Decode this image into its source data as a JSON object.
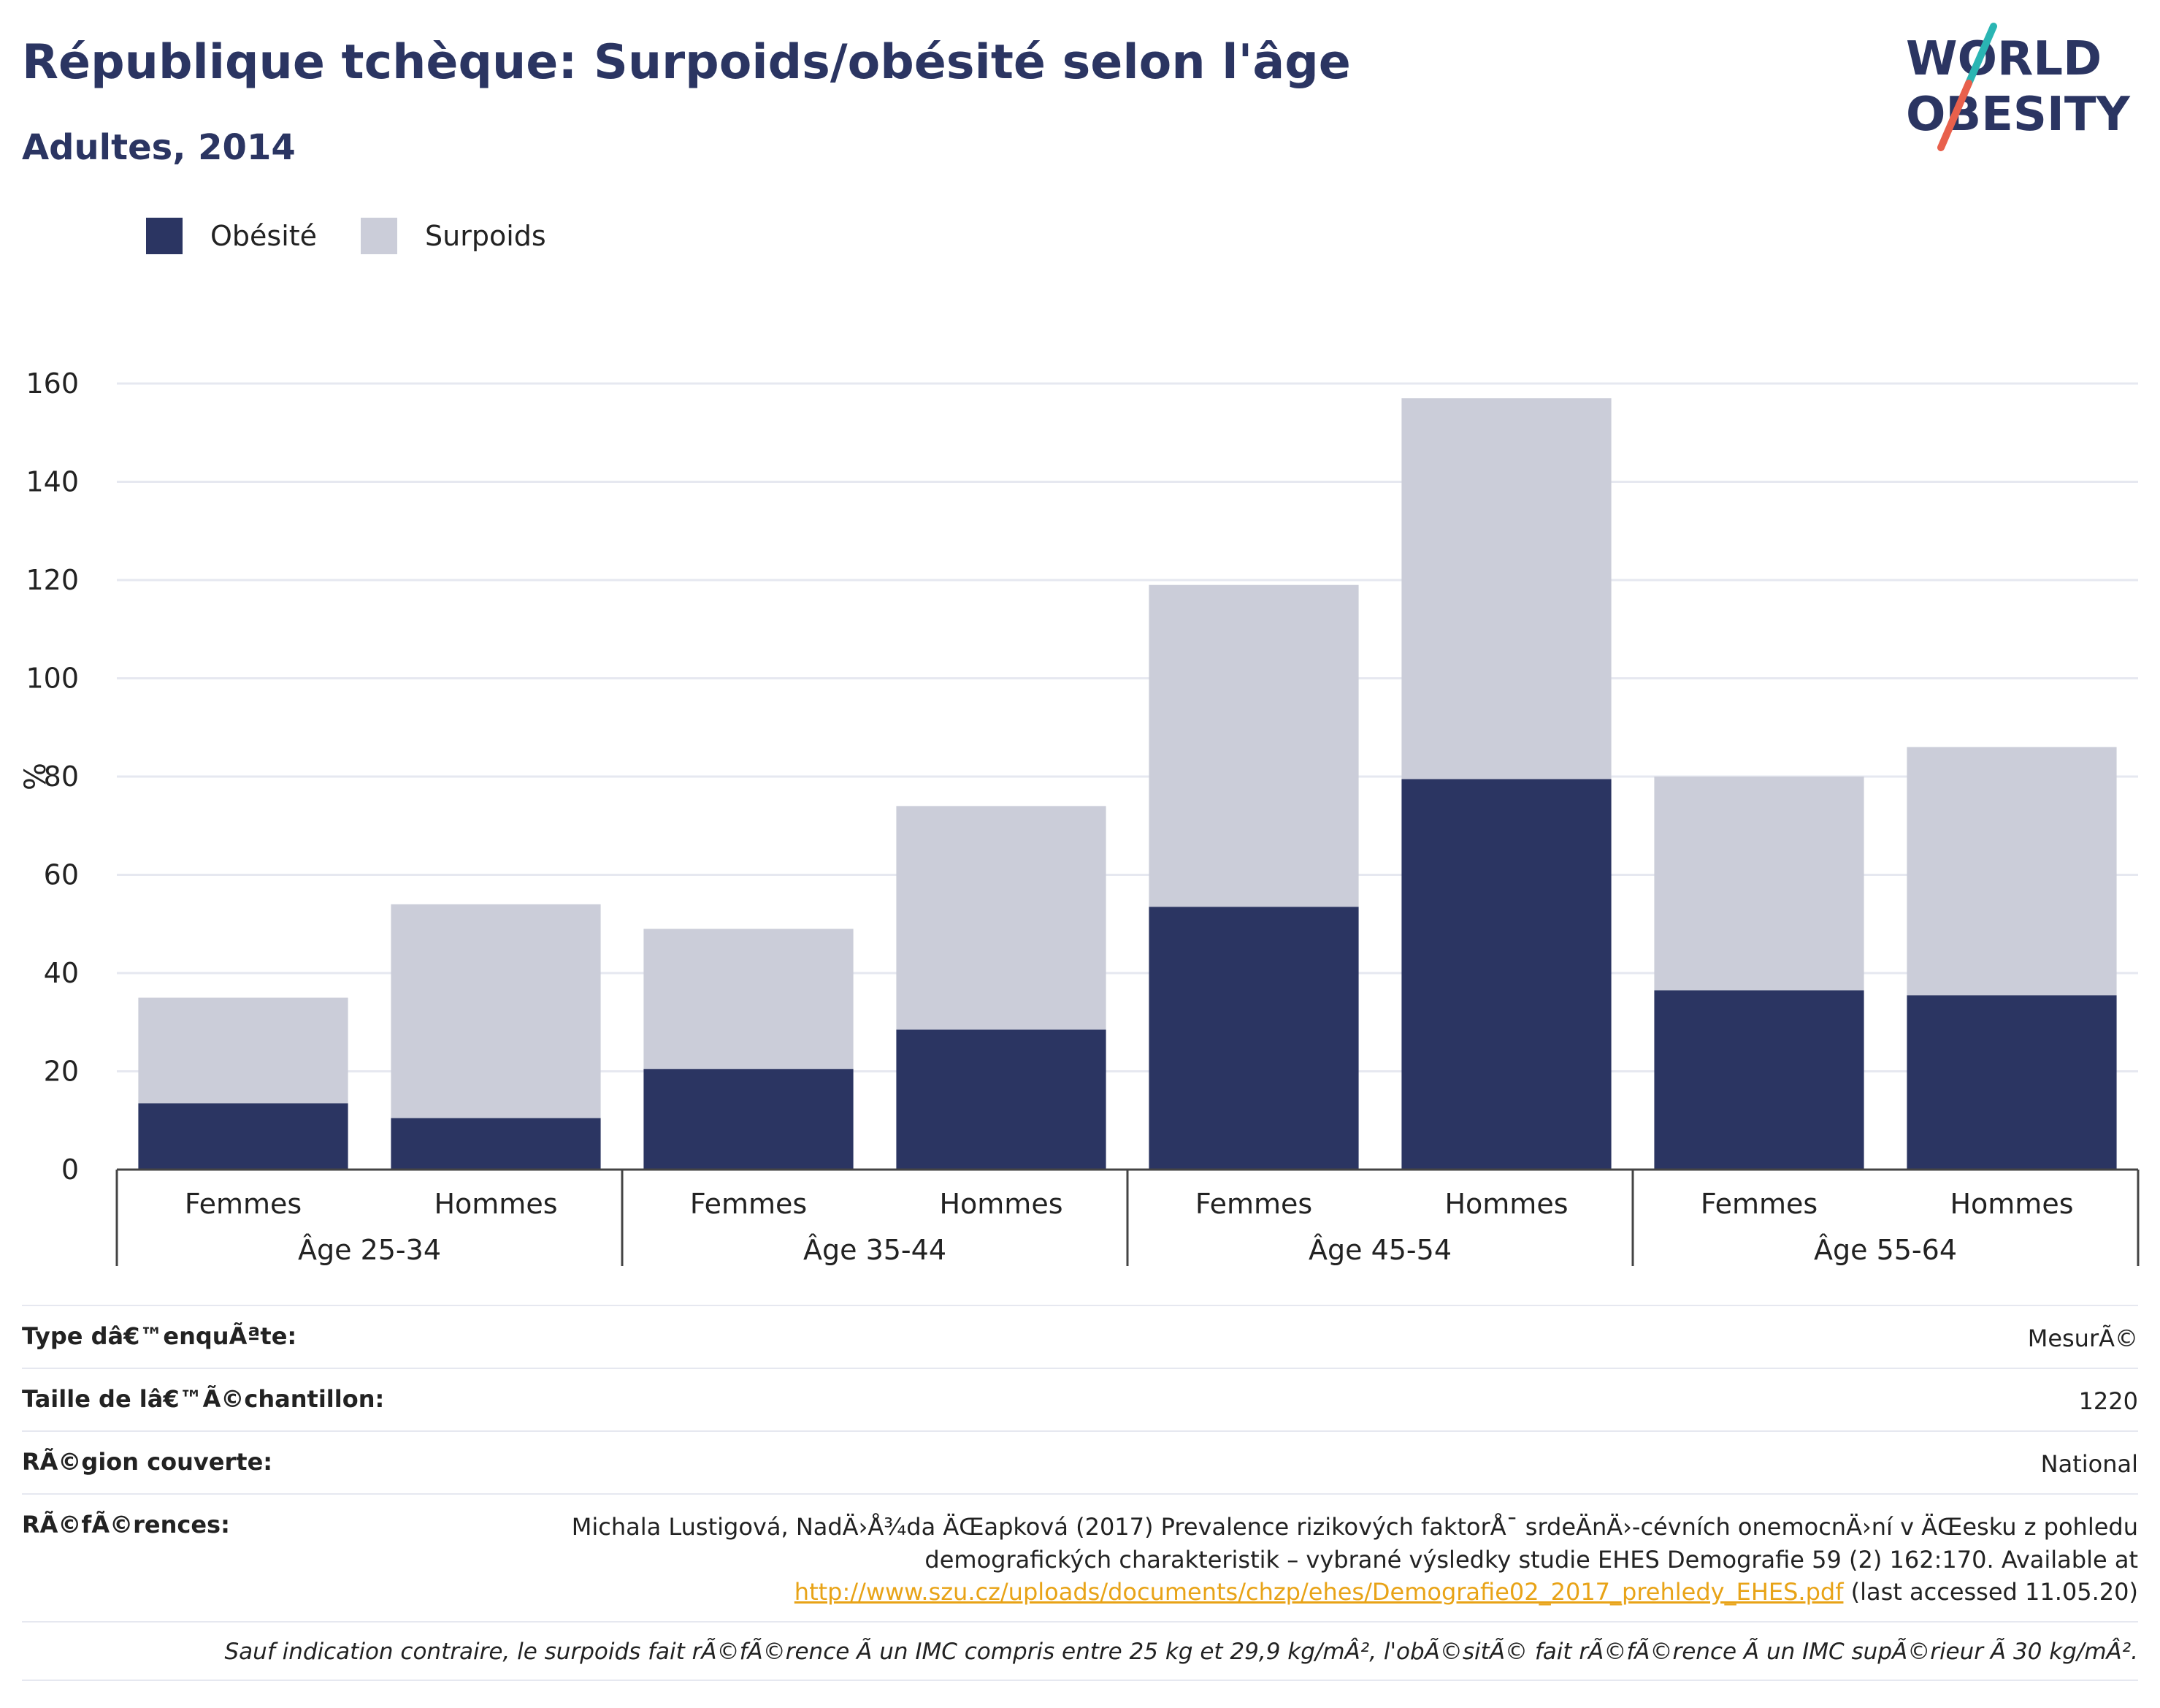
{
  "header": {
    "title": "République tchèque: Surpoids/obésité selon l'âge",
    "subtitle": "Adultes, 2014"
  },
  "logo": {
    "line1": "WORLD",
    "line2": "OBESITY",
    "colors": {
      "text": "#2b3562",
      "slash_top": "#2ab5b3",
      "slash_bottom": "#e8604c"
    }
  },
  "legend": [
    {
      "label": "Obésité",
      "color": "#2b3562"
    },
    {
      "label": "Surpoids",
      "color": "#cbcdd9"
    }
  ],
  "chart_data": {
    "type": "bar",
    "stacked": true,
    "ylabel": "%",
    "ylim": [
      0,
      160
    ],
    "yticks": [
      0,
      20,
      40,
      60,
      80,
      100,
      120,
      140,
      160
    ],
    "grid": true,
    "legend_position": "top-left",
    "groups": [
      "Âge 25-34",
      "Âge 35-44",
      "Âge 45-54",
      "Âge 55-64"
    ],
    "categories": [
      "Femmes",
      "Hommes",
      "Femmes",
      "Hommes",
      "Femmes",
      "Hommes",
      "Femmes",
      "Hommes"
    ],
    "series": [
      {
        "name": "Obésité",
        "color": "#2b3562",
        "values": [
          13.5,
          10.5,
          20.5,
          28.5,
          53.5,
          79.5,
          36.5,
          35.5
        ]
      },
      {
        "name": "Surpoids",
        "color": "#cbcdd9",
        "values": [
          21.5,
          43.5,
          28.5,
          45.5,
          65.5,
          77.5,
          43.5,
          50.5
        ]
      }
    ]
  },
  "info": {
    "survey_type_label": "Type dâ€™enquÃªte:",
    "survey_type_value": "MesurÃ©",
    "sample_size_label": "Taille de lâ€™Ã©chantillon:",
    "sample_size_value": "1220",
    "region_label": "RÃ©gion couverte:",
    "region_value": "National",
    "references_label": "RÃ©fÃ©rences:",
    "references_text": "Michala Lustigová, NadÄ›Å¾da ÄŒapková (2017) Prevalence rizikových faktorÅ¯ srdeÄnÄ›-cévních onemocnÄ›ní v ÄŒesku z pohledu demografických charakteristik – vybrané výsledky studie EHES Demografie 59 (2) 162:170. Available at",
    "references_link": "http://www.szu.cz/uploads/documents/chzp/ehes/Demografie02_2017_prehledy_EHES.pdf",
    "references_suffix": " (last accessed 11.05.20)",
    "footnote": "Sauf indication contraire, le surpoids fait rÃ©fÃ©rence Ã  un IMC compris entre 25 kg et 29,9 kg/mÂ², l'obÃ©sitÃ© fait rÃ©fÃ©rence Ã  un IMC supÃ©rieur Ã  30 kg/mÂ²."
  }
}
